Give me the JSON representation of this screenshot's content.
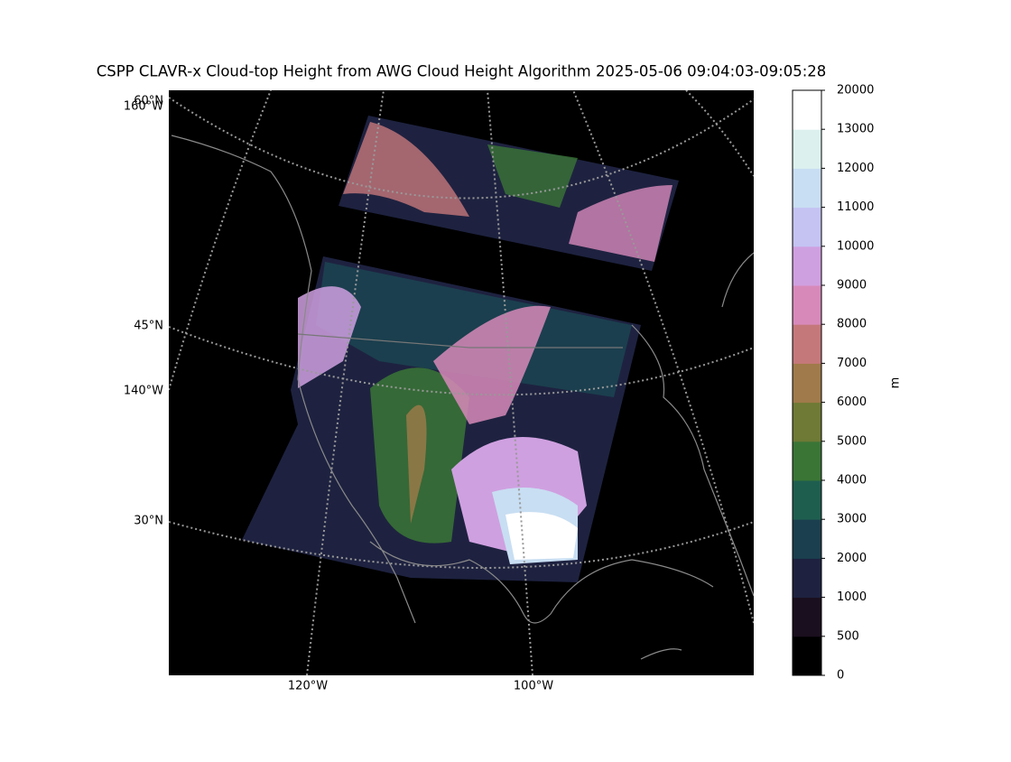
{
  "title": "CSPP CLAVR-x Cloud-top Height from AWG Cloud Height Algorithm 2025-05-06 09:04:03-09:05:28",
  "lat_labels": [
    "60°N",
    "45°N",
    "30°N"
  ],
  "lon_labels": [
    "160°W",
    "140°W",
    "120°W",
    "100°W"
  ],
  "colorbar": {
    "label": "m",
    "levels": [
      0,
      500,
      1000,
      2000,
      3000,
      4000,
      5000,
      6000,
      7000,
      8000,
      9000,
      10000,
      11000,
      12000,
      13000,
      20000
    ],
    "colors": [
      "#000000",
      "#1a0f1e",
      "#1e2240",
      "#1b3f4e",
      "#1e5e4f",
      "#3a7536",
      "#6e7a35",
      "#a07a4a",
      "#c5787a",
      "#d78aba",
      "#cfa0e0",
      "#c4c3f2",
      "#c8def2",
      "#dcf1ee",
      "#ffffff"
    ]
  }
}
